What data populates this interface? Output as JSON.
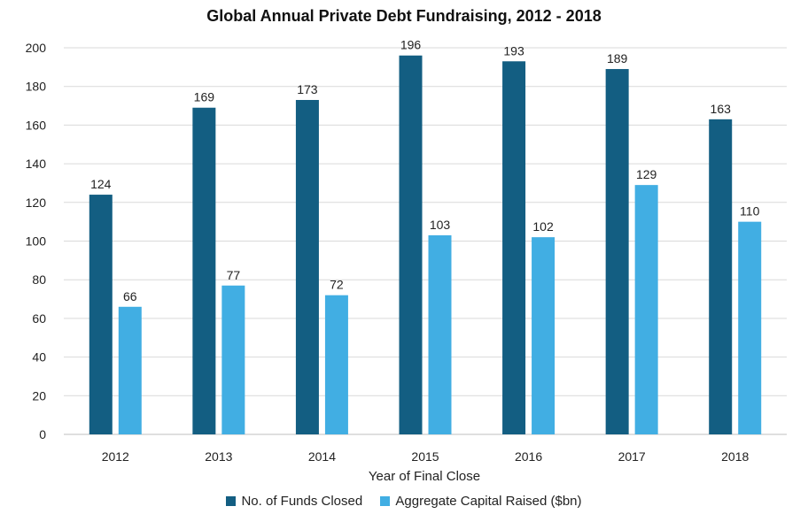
{
  "chart_data": {
    "type": "bar",
    "title": "Global Annual Private Debt Fundraising, 2012 - 2018",
    "xlabel": "Year of Final Close",
    "ylabel": "",
    "ylim": [
      0,
      200
    ],
    "yticks": [
      0,
      20,
      40,
      60,
      80,
      100,
      120,
      140,
      160,
      180,
      200
    ],
    "grid": true,
    "legend_position": "bottom",
    "categories": [
      "2012",
      "2013",
      "2014",
      "2015",
      "2016",
      "2017",
      "2018"
    ],
    "series": [
      {
        "name": "No. of Funds Closed",
        "color": "#135e82",
        "values": [
          124,
          169,
          173,
          196,
          193,
          189,
          163
        ]
      },
      {
        "name": "Aggregate Capital Raised ($bn)",
        "color": "#41aee3",
        "values": [
          66,
          77,
          72,
          103,
          102,
          129,
          110
        ]
      }
    ]
  }
}
